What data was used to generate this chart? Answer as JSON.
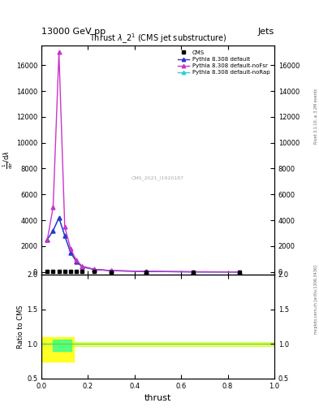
{
  "title_top": "13000 GeV pp",
  "title_right": "Jets",
  "plot_title": "Thrust $\\lambda$_2$^1$ (CMS jet substructure)",
  "watermark": "CMS_2021_I1920187",
  "right_label": "mcplots.cern.ch [arXiv:1306.3436]",
  "right_label2": "Rivet 3.1.10, ≥ 3.2M events",
  "ylabel_main": "$\\frac{1}{\\mathrm{d}\\sigma} \\cdot \\frac{\\mathrm{d}\\sigma}{\\mathrm{d}\\lambda}$",
  "ylabel_ratio": "Ratio to CMS",
  "xlabel": "thrust",
  "ylim_main": [
    -200,
    17500
  ],
  "ylim_ratio": [
    0.5,
    2.0
  ],
  "xlim": [
    0.0,
    1.0
  ],
  "yticks_main": [
    0,
    2000,
    4000,
    6000,
    8000,
    10000,
    12000,
    14000,
    16000
  ],
  "yticks_ratio": [
    0.5,
    1.0,
    1.5,
    2.0
  ],
  "cms_x": [
    0.025,
    0.05,
    0.075,
    0.1,
    0.125,
    0.15,
    0.175,
    0.225,
    0.3,
    0.45,
    0.65,
    0.85
  ],
  "cms_y": [
    50,
    50,
    50,
    50,
    50,
    50,
    30,
    20,
    10,
    5,
    1,
    0.5
  ],
  "pythia_default_x": [
    0.025,
    0.05,
    0.075,
    0.1,
    0.125,
    0.15,
    0.175,
    0.225,
    0.3,
    0.45,
    0.65,
    0.85
  ],
  "pythia_default_y": [
    2500,
    3200,
    4200,
    2800,
    1500,
    800,
    400,
    200,
    100,
    40,
    10,
    2
  ],
  "pythia_nofsr_x": [
    0.025,
    0.05,
    0.075,
    0.1,
    0.125,
    0.15,
    0.175,
    0.225,
    0.3,
    0.45,
    0.65,
    0.85
  ],
  "pythia_nofsr_y": [
    2500,
    5000,
    17000,
    3500,
    1800,
    900,
    450,
    210,
    105,
    42,
    10,
    2
  ],
  "pythia_norap_x": [
    0.025,
    0.05,
    0.075,
    0.1,
    0.125,
    0.15,
    0.175,
    0.225,
    0.3,
    0.45,
    0.65,
    0.85
  ],
  "pythia_norap_y": [
    2500,
    3200,
    4200,
    2800,
    1500,
    800,
    400,
    200,
    100,
    40,
    10,
    2
  ],
  "color_cms": "#000000",
  "color_default": "#3333cc",
  "color_nofsr": "#cc33cc",
  "color_norap": "#33cccc",
  "color_green_band": "#ccff44",
  "color_yellow_box": "#ffff00",
  "color_green_box": "#44ff88",
  "bg_color": "#ffffff"
}
